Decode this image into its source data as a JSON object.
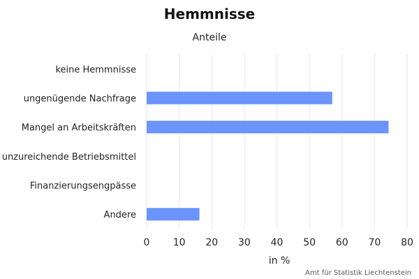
{
  "chart_data": {
    "type": "bar",
    "orientation": "horizontal",
    "title": "Hemmnisse",
    "subtitle": "Anteile",
    "xlabel": "in %",
    "ylabel": "",
    "categories": [
      "keine Hemmnisse",
      "ungenügende Nachfrage",
      "Mangel an Arbeitskräften",
      "unzureichende Betriebsmittel",
      "Finanzierungsengpässe",
      "Andere"
    ],
    "values": [
      0,
      57,
      74.3,
      0,
      0,
      16.2
    ],
    "xlim": [
      0,
      80
    ],
    "xticks": [
      0,
      10,
      20,
      30,
      40,
      50,
      60,
      70,
      80
    ],
    "grid": true,
    "bar_color": "#6b95fb",
    "grid_color": "#e6e6e6"
  },
  "source": "Amt für Statistik Liechtenstein"
}
